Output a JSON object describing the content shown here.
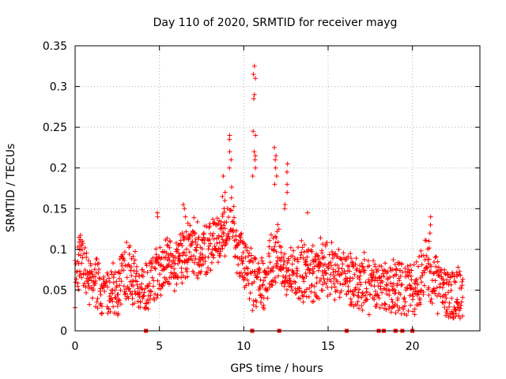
{
  "chart_data": {
    "type": "scatter",
    "title": "Day 110 of 2020, SRMTID for receiver mayg",
    "xlabel": "GPS time / hours",
    "ylabel": "SRMTID / TECUs",
    "xlim": [
      0,
      24
    ],
    "ylim": [
      0,
      0.35
    ],
    "xticks": [
      "0",
      "5",
      "10",
      "15",
      "20"
    ],
    "xtick_values": [
      0,
      5,
      10,
      15,
      20
    ],
    "yticks": [
      "0",
      "0.05",
      "0.1",
      "0.15",
      "0.2",
      "0.25",
      "0.3",
      "0.35"
    ],
    "ytick_values": [
      0,
      0.05,
      0.1,
      0.15,
      0.2,
      0.25,
      0.3,
      0.35
    ],
    "grid": true,
    "marker": "+",
    "color": "#ff0000",
    "series": [
      {
        "name": "SRMTID",
        "trend": [
          [
            0,
            0.06
          ],
          [
            0.3,
            0.09
          ],
          [
            0.8,
            0.065
          ],
          [
            1.5,
            0.05
          ],
          [
            2.5,
            0.05
          ],
          [
            3,
            0.075
          ],
          [
            3.5,
            0.065
          ],
          [
            4.2,
            0.055
          ],
          [
            5,
            0.075
          ],
          [
            6,
            0.085
          ],
          [
            6.8,
            0.1
          ],
          [
            7.5,
            0.1
          ],
          [
            8,
            0.105
          ],
          [
            8.5,
            0.115
          ],
          [
            9,
            0.12
          ],
          [
            9.3,
            0.15
          ],
          [
            9.6,
            0.09
          ],
          [
            10.2,
            0.085
          ],
          [
            10.5,
            0.06
          ],
          [
            11,
            0.055
          ],
          [
            11.5,
            0.075
          ],
          [
            12,
            0.1
          ],
          [
            12.3,
            0.07
          ],
          [
            13,
            0.075
          ],
          [
            14,
            0.07
          ],
          [
            15,
            0.08
          ],
          [
            16,
            0.065
          ],
          [
            17,
            0.06
          ],
          [
            18,
            0.055
          ],
          [
            19,
            0.055
          ],
          [
            20,
            0.05
          ],
          [
            20.8,
            0.08
          ],
          [
            21.3,
            0.06
          ],
          [
            22,
            0.04
          ],
          [
            23,
            0.05
          ]
        ],
        "spikes": [
          {
            "x": 8.8,
            "values": [
              0.19,
              0.17,
              0.165,
              0.16
            ]
          },
          {
            "x": 9.2,
            "values": [
              0.24,
              0.235,
              0.22,
              0.21,
              0.2
            ]
          },
          {
            "x": 10.6,
            "values": [
              0.325,
              0.315,
              0.31,
              0.29,
              0.285
            ]
          },
          {
            "x": 10.6,
            "values": [
              0.245,
              0.24,
              0.22,
              0.215,
              0.21,
              0.2,
              0.19
            ]
          },
          {
            "x": 11.9,
            "values": [
              0.225,
              0.215,
              0.21,
              0.2,
              0.19,
              0.18
            ]
          },
          {
            "x": 12.5,
            "values": [
              0.205,
              0.195,
              0.18,
              0.17,
              0.155,
              0.15
            ]
          },
          {
            "x": 21,
            "values": [
              0.14,
              0.13,
              0.12,
              0.11
            ]
          },
          {
            "x": 6.5,
            "values": [
              0.155,
              0.15,
              0.14
            ]
          },
          {
            "x": 4.8,
            "values": [
              0.145,
              0.14
            ]
          },
          {
            "x": 13.8,
            "values": [
              0.145
            ]
          }
        ],
        "zero_markers": [
          4.2,
          10.5,
          12.1,
          16.1,
          18,
          18.3,
          19,
          19.4,
          20
        ]
      }
    ]
  }
}
